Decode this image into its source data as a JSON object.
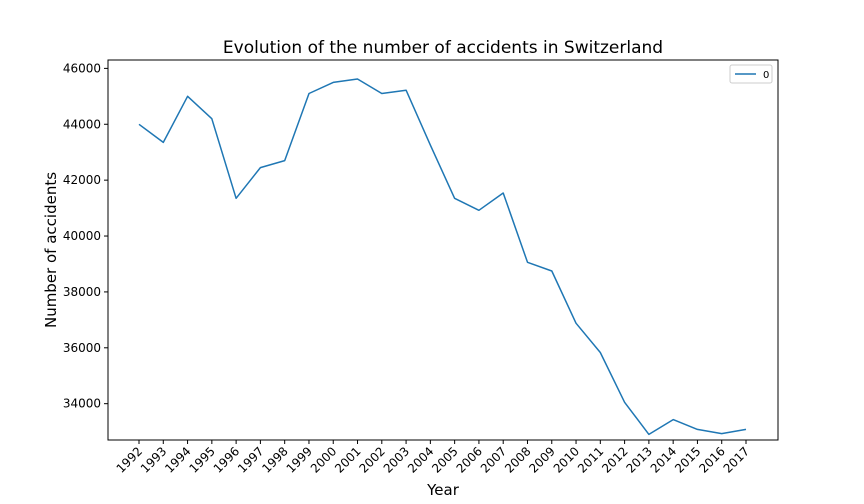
{
  "chart_data": {
    "type": "line",
    "title": "Evolution of the number of accidents in Switzerland",
    "xlabel": "Year",
    "ylabel": "Number of accidents",
    "categories": [
      "1992",
      "1993",
      "1994",
      "1995",
      "1996",
      "1997",
      "1998",
      "1999",
      "2000",
      "2001",
      "2002",
      "2003",
      "2004",
      "2005",
      "2006",
      "2007",
      "2008",
      "2009",
      "2010",
      "2011",
      "2012",
      "2013",
      "2014",
      "2015",
      "2016",
      "2017"
    ],
    "series": [
      {
        "name": "0",
        "color": "#1f77b4",
        "values": [
          44000,
          43350,
          45000,
          44200,
          41350,
          42450,
          42700,
          45100,
          45500,
          45620,
          45100,
          45220,
          43250,
          41350,
          40920,
          41540,
          39060,
          38750,
          36880,
          35830,
          34050,
          32900,
          33430,
          33080,
          32930,
          33080
        ]
      }
    ],
    "ylim": [
      32700,
      46300
    ],
    "yticks": [
      34000,
      36000,
      38000,
      40000,
      42000,
      44000,
      46000
    ],
    "ytick_labels": [
      "34000",
      "36000",
      "38000",
      "40000",
      "42000",
      "44000",
      "46000"
    ],
    "grid": false,
    "legend_position": "top-right"
  }
}
